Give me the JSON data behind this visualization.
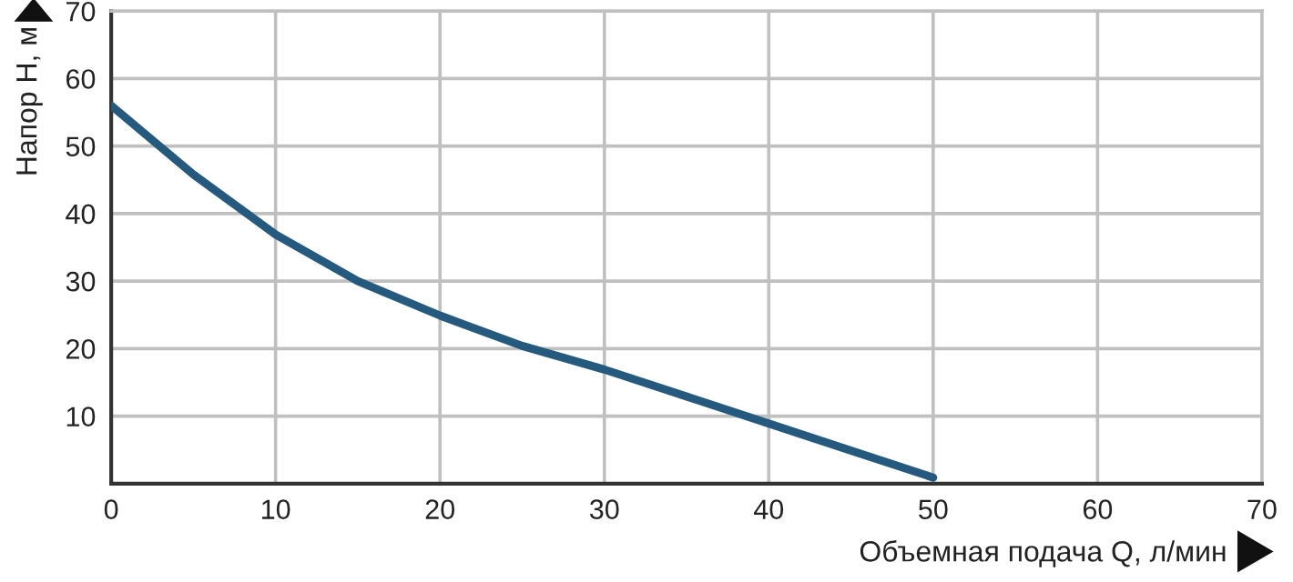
{
  "chart_data": {
    "type": "line",
    "xlabel": "Объемная подача Q, л/мин",
    "ylabel": "Напор H, м",
    "x": [
      0,
      5,
      10,
      15,
      20,
      25,
      30,
      35,
      40,
      45,
      50
    ],
    "series": [
      {
        "color": "#255a7e",
        "values": [
          56,
          45.8,
          36.9,
          30,
          24.9,
          20.4,
          16.9,
          12.9,
          8.9,
          4.9,
          0.9
        ]
      }
    ],
    "xlim": [
      0,
      70
    ],
    "xticks": [
      0,
      10,
      20,
      30,
      40,
      50,
      60,
      70
    ],
    "ylim": [
      0,
      70
    ],
    "yticks": [
      {
        "value": 0,
        "label": null
      },
      10,
      20,
      30,
      40,
      50,
      60,
      70
    ],
    "grid": true,
    "legend": false,
    "marker": "none",
    "line_style": "solid"
  }
}
